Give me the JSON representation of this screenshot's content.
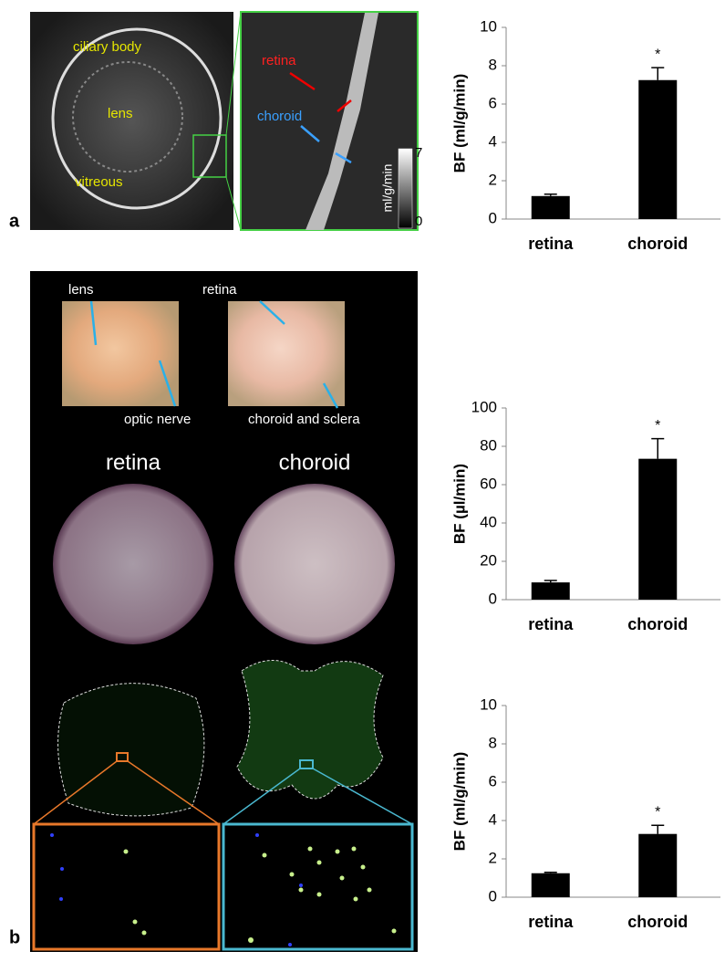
{
  "chart_data": [
    {
      "type": "bar",
      "y_label": "BF (ml/g/min)",
      "categories": [
        "retina",
        "choroid"
      ],
      "values": [
        1.2,
        7.25
      ],
      "errors": [
        0.1,
        0.65
      ],
      "value_annotations": [
        null,
        "*"
      ],
      "color": "#000000",
      "ylim": [
        0,
        10
      ],
      "yticks": [
        0,
        2,
        4,
        6,
        8,
        10
      ]
    },
    {
      "type": "bar",
      "y_label": "BF (µl/min)",
      "categories": [
        "retina",
        "choroid"
      ],
      "values": [
        9,
        73.5
      ],
      "errors": [
        1,
        10.5
      ],
      "value_annotations": [
        null,
        "*"
      ],
      "color": "#000000",
      "ylim": [
        0,
        100
      ],
      "yticks": [
        0,
        20,
        40,
        60,
        80,
        100
      ]
    },
    {
      "type": "bar",
      "y_label": "BF (ml/g/min)",
      "categories": [
        "retina",
        "choroid"
      ],
      "values": [
        1.25,
        3.3
      ],
      "errors": [
        0.05,
        0.45
      ],
      "value_annotations": [
        null,
        "*"
      ],
      "color": "#000000",
      "ylim": [
        0,
        10
      ],
      "yticks": [
        0,
        2,
        4,
        6,
        8,
        10
      ]
    }
  ],
  "panel_a": {
    "label": "a",
    "eye_labels": [
      "ciliary body",
      "lens",
      "vitreous"
    ],
    "zoom_labels": [
      "retina",
      "choroid"
    ],
    "colorbar": {
      "unit": "ml/g/min",
      "max": "7",
      "min": "0"
    }
  },
  "panel_b": {
    "label": "b",
    "photo_labels": [
      "lens",
      "optic nerve",
      "retina",
      "choroid and sclera"
    ],
    "section_titles": [
      "retina",
      "choroid"
    ]
  }
}
